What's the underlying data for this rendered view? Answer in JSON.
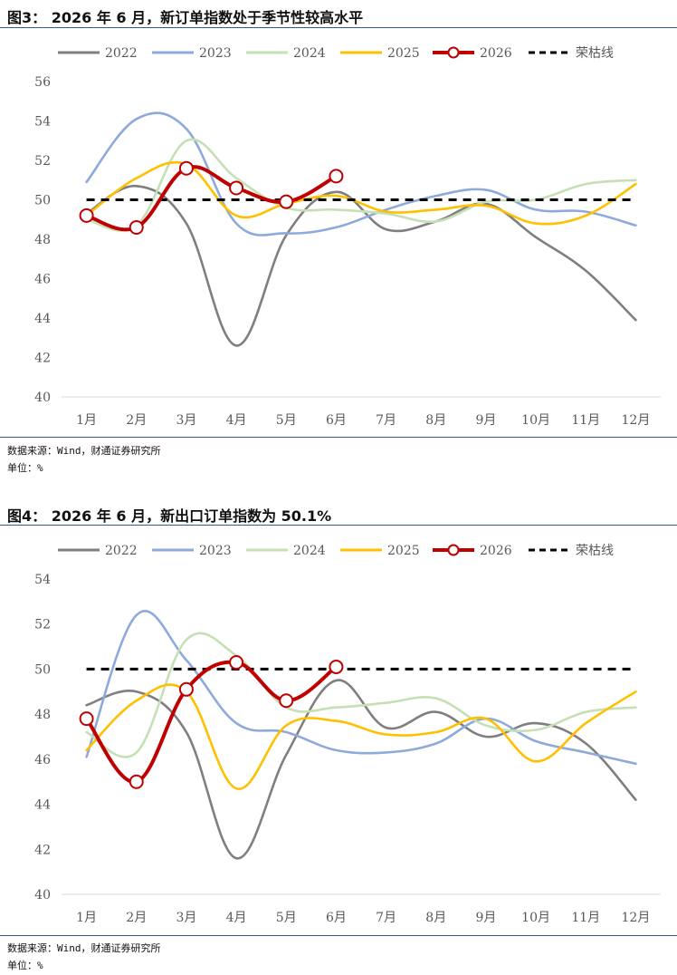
{
  "figure1": {
    "title": "图3：  2026 年 6 月，新订单指数处于季节性较高水平",
    "source": "数据来源：Wind，财通证券研究所",
    "unit": "单位：%"
  },
  "figure2": {
    "title": "图4：  2026 年 6 月，新出口订单指数为 50.1%",
    "source": "数据来源：Wind，财通证券研究所",
    "unit": "单位：%"
  },
  "chart_data": [
    {
      "type": "line",
      "categories": [
        "1月",
        "2月",
        "3月",
        "4月",
        "5月",
        "6月",
        "7月",
        "8月",
        "9月",
        "10月",
        "11月",
        "12月"
      ],
      "ylim": [
        40,
        56
      ],
      "yticks": [
        40,
        42,
        44,
        46,
        48,
        50,
        52,
        54,
        56
      ],
      "legend_position": "top",
      "grid": false,
      "series": [
        {
          "name": "2022",
          "color": "#7f7f7f",
          "values": [
            49.3,
            50.7,
            48.8,
            42.6,
            48.2,
            50.4,
            48.5,
            48.9,
            49.8,
            48.1,
            46.4,
            43.9
          ]
        },
        {
          "name": "2023",
          "color": "#8eaadb",
          "values": [
            50.9,
            54.1,
            53.6,
            48.8,
            48.3,
            48.6,
            49.5,
            50.2,
            50.5,
            49.5,
            49.4,
            48.7
          ]
        },
        {
          "name": "2024",
          "color": "#c5e0b4",
          "values": [
            49.0,
            48.7,
            53.0,
            51.1,
            49.6,
            49.5,
            49.3,
            48.9,
            49.9,
            50.0,
            50.8,
            51.0
          ]
        },
        {
          "name": "2025",
          "color": "#ffc000",
          "values": [
            49.2,
            51.1,
            51.8,
            49.2,
            49.8,
            50.2,
            49.4,
            49.5,
            49.7,
            48.8,
            49.2,
            50.8
          ]
        },
        {
          "name": "2026",
          "color": "#c00000",
          "marker": true,
          "values": [
            49.2,
            48.6,
            51.6,
            50.6,
            49.9,
            51.2,
            null,
            null,
            null,
            null,
            null,
            null
          ]
        },
        {
          "name": "荣枯线",
          "color": "#000000",
          "dashed": true,
          "values": [
            50,
            50,
            50,
            50,
            50,
            50,
            50,
            50,
            50,
            50,
            50,
            50
          ]
        }
      ]
    },
    {
      "type": "line",
      "categories": [
        "1月",
        "2月",
        "3月",
        "4月",
        "5月",
        "6月",
        "7月",
        "8月",
        "9月",
        "10月",
        "11月",
        "12月"
      ],
      "ylim": [
        40,
        54
      ],
      "yticks": [
        40,
        42,
        44,
        46,
        48,
        50,
        52,
        54
      ],
      "legend_position": "top",
      "grid": false,
      "series": [
        {
          "name": "2022",
          "color": "#7f7f7f",
          "values": [
            48.4,
            49.0,
            47.2,
            41.6,
            46.2,
            49.5,
            47.4,
            48.1,
            47.0,
            47.6,
            46.7,
            44.2
          ]
        },
        {
          "name": "2023",
          "color": "#8eaadb",
          "values": [
            46.1,
            52.4,
            50.4,
            47.6,
            47.2,
            46.4,
            46.3,
            46.7,
            47.8,
            46.8,
            46.3,
            45.8
          ]
        },
        {
          "name": "2024",
          "color": "#c5e0b4",
          "values": [
            47.2,
            46.3,
            51.3,
            50.6,
            48.3,
            48.3,
            48.5,
            48.7,
            47.5,
            47.3,
            48.1,
            48.3
          ]
        },
        {
          "name": "2025",
          "color": "#ffc000",
          "values": [
            46.4,
            48.6,
            49.0,
            44.7,
            47.5,
            47.7,
            47.1,
            47.2,
            47.8,
            45.9,
            47.6,
            49.0
          ]
        },
        {
          "name": "2026",
          "color": "#c00000",
          "marker": true,
          "values": [
            47.8,
            45.0,
            49.1,
            50.3,
            48.6,
            50.1,
            null,
            null,
            null,
            null,
            null,
            null
          ]
        },
        {
          "name": "荣枯线",
          "color": "#000000",
          "dashed": true,
          "values": [
            50,
            50,
            50,
            50,
            50,
            50,
            50,
            50,
            50,
            50,
            50,
            50
          ]
        }
      ]
    }
  ]
}
